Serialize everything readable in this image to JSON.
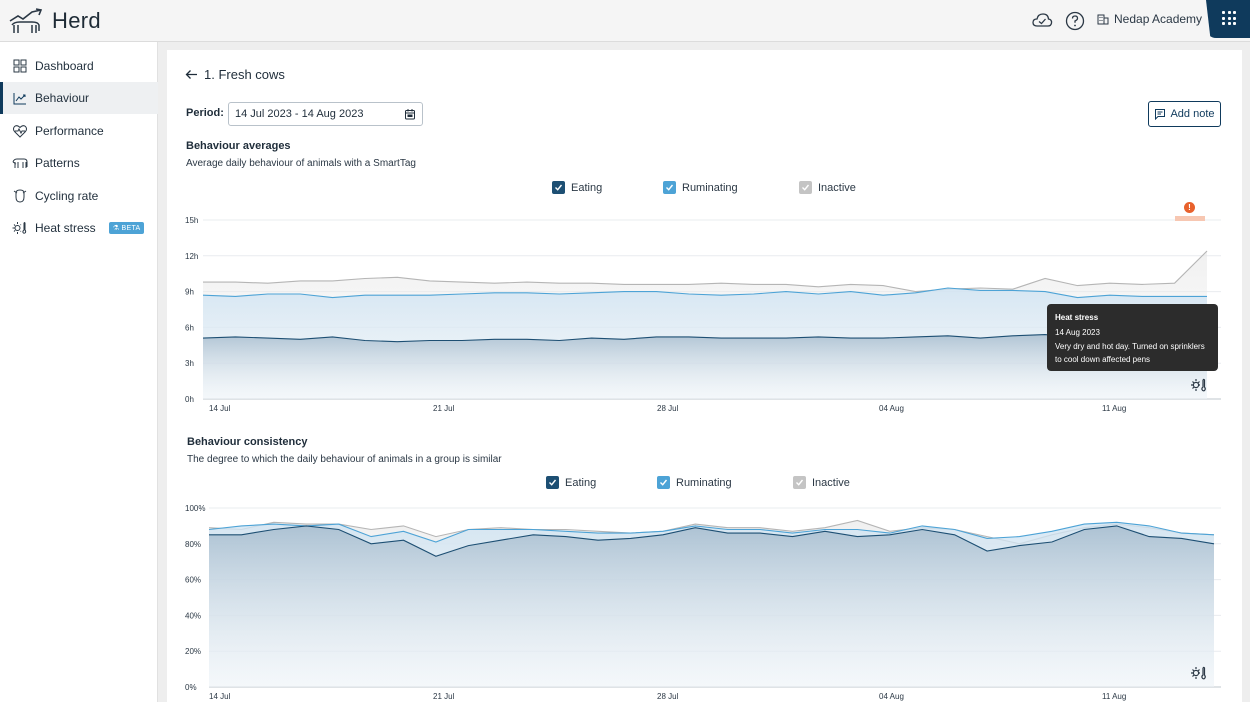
{
  "app": {
    "title": "Herd",
    "academy": "Nedap Academy"
  },
  "sidebar": {
    "items": [
      {
        "label": "Dashboard",
        "icon": "dashboard-icon"
      },
      {
        "label": "Behaviour",
        "icon": "behaviour-icon",
        "active": true
      },
      {
        "label": "Performance",
        "icon": "performance-icon"
      },
      {
        "label": "Patterns",
        "icon": "patterns-icon"
      },
      {
        "label": "Cycling rate",
        "icon": "cycling-icon"
      },
      {
        "label": "Heat stress",
        "icon": "heat-stress-icon",
        "badge": "BETA"
      }
    ]
  },
  "page": {
    "title": "1. Fresh cows",
    "period_label": "Period:",
    "period_value": "14 Jul 2023 - 14 Aug 2023",
    "add_note": "Add note"
  },
  "averages": {
    "title": "Behaviour averages",
    "subtitle": "Average daily behaviour of animals with a SmartTag",
    "legend": [
      "Eating",
      "Ruminating",
      "Inactive"
    ]
  },
  "consistency": {
    "title": "Behaviour consistency",
    "subtitle": "The degree to which the daily behaviour of animals in a group is similar",
    "legend": [
      "Eating",
      "Ruminating",
      "Inactive"
    ]
  },
  "tooltip": {
    "title": "Heat stress",
    "date": "14 Aug 2023",
    "text": "Very dry and hot day. Turned on sprinklers to cool down affected pens"
  },
  "colors": {
    "eating": "#1d4f73",
    "ruminating": "#4da3d6",
    "inactive": "#c4c4c4",
    "accent": "#0f3a5c",
    "alert": "#e8612c"
  },
  "chart_data": [
    {
      "type": "area",
      "title": "Behaviour averages",
      "x_ticks": [
        "14 Jul",
        "21 Jul",
        "28 Jul",
        "04 Aug",
        "11 Aug"
      ],
      "y_ticks": [
        "0h",
        "3h",
        "6h",
        "9h",
        "12h",
        "15h"
      ],
      "ylim": [
        0,
        15
      ],
      "series": [
        {
          "name": "Inactive",
          "values": [
            9.8,
            9.8,
            9.7,
            9.9,
            9.9,
            10.1,
            10.2,
            9.9,
            9.8,
            9.7,
            9.8,
            9.7,
            9.7,
            9.6,
            9.6,
            9.6,
            9.7,
            9.6,
            9.6,
            9.4,
            9.6,
            9.5,
            9.0,
            9.2,
            9.3,
            9.2,
            10.1,
            9.5,
            9.7,
            9.6,
            9.7,
            12.4
          ]
        },
        {
          "name": "Ruminating",
          "values": [
            8.7,
            8.6,
            8.8,
            8.8,
            8.5,
            8.7,
            8.7,
            8.7,
            8.8,
            8.9,
            8.9,
            8.8,
            8.9,
            9.0,
            9.0,
            8.8,
            8.7,
            8.8,
            9.0,
            8.8,
            9.0,
            8.7,
            8.9,
            9.3,
            9.1,
            9.1,
            9.0,
            8.5,
            8.7,
            8.6,
            8.6,
            8.6
          ]
        },
        {
          "name": "Eating",
          "values": [
            5.1,
            5.2,
            5.1,
            5.0,
            5.2,
            4.9,
            4.8,
            4.9,
            4.9,
            5.0,
            5.0,
            4.9,
            5.1,
            5.0,
            5.2,
            5.2,
            5.1,
            5.1,
            5.1,
            5.2,
            5.1,
            5.1,
            5.2,
            5.3,
            5.1,
            5.3,
            5.4,
            5.1,
            5.1,
            5.2,
            5.1,
            5.2
          ]
        }
      ]
    },
    {
      "type": "area",
      "title": "Behaviour consistency",
      "x_ticks": [
        "14 Jul",
        "21 Jul",
        "28 Jul",
        "04 Aug",
        "11 Aug"
      ],
      "y_ticks": [
        "0%",
        "20%",
        "40%",
        "60%",
        "80%",
        "100%"
      ],
      "ylim": [
        0,
        100
      ],
      "series": [
        {
          "name": "Inactive",
          "values": [
            89,
            88,
            92,
            91,
            91,
            88,
            90,
            84,
            88,
            89,
            88,
            88,
            87,
            86,
            87,
            91,
            89,
            89,
            87,
            89,
            93,
            87,
            89,
            88,
            84,
            80,
            85,
            89,
            91,
            89,
            86,
            85
          ]
        },
        {
          "name": "Ruminating",
          "values": [
            88,
            90,
            91,
            90,
            91,
            84,
            87,
            81,
            88,
            88,
            88,
            87,
            86,
            86,
            87,
            90,
            88,
            88,
            86,
            88,
            88,
            86,
            90,
            88,
            83,
            84,
            87,
            91,
            92,
            90,
            86,
            85
          ]
        },
        {
          "name": "Eating",
          "values": [
            85,
            85,
            88,
            90,
            88,
            80,
            82,
            73,
            79,
            82,
            85,
            84,
            82,
            83,
            85,
            89,
            86,
            86,
            84,
            87,
            84,
            85,
            88,
            85,
            76,
            79,
            81,
            88,
            90,
            84,
            83,
            80
          ]
        }
      ]
    }
  ]
}
